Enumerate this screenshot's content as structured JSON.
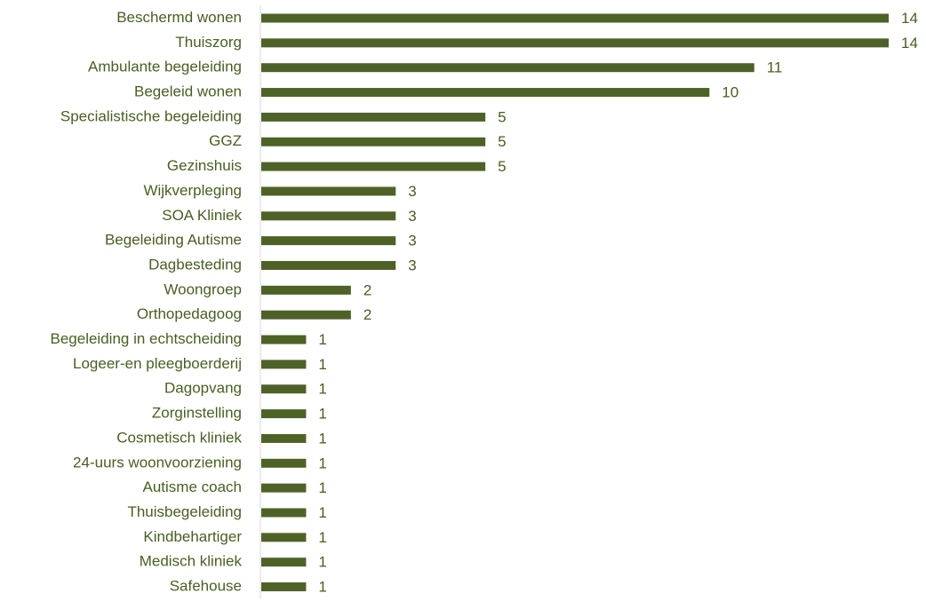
{
  "chart_data": {
    "type": "bar",
    "orientation": "horizontal",
    "title": "",
    "xlabel": "",
    "ylabel": "",
    "categories": [
      "Beschermd wonen",
      "Thuiszorg",
      "Ambulante begeleiding",
      "Begeleid wonen",
      "Specialistische begeleiding",
      "GGZ",
      "Gezinshuis",
      "Wijkverpleging",
      "SOA Kliniek",
      "Begeleiding Autisme",
      "Dagbesteding",
      "Woongroep",
      "Orthopedagoog",
      "Begeleiding in echtscheiding",
      "Logeer-en pleegboerderij",
      "Dagopvang",
      "Zorginstelling",
      "Cosmetisch kliniek",
      "24-uurs woonvoorziening",
      "Autisme coach",
      "Thuisbegeleiding",
      "Kindbehartiger",
      "Medisch kliniek",
      "Safehouse"
    ],
    "values": [
      14,
      14,
      11,
      10,
      5,
      5,
      5,
      3,
      3,
      3,
      3,
      2,
      2,
      1,
      1,
      1,
      1,
      1,
      1,
      1,
      1,
      1,
      1,
      1
    ],
    "xlim": [
      0,
      14
    ],
    "grid": false,
    "legend": "none",
    "data_labels": true,
    "colors": {
      "bar": "#4e6228",
      "text": "#4a5e23",
      "axis": "#d9d9d9"
    }
  }
}
